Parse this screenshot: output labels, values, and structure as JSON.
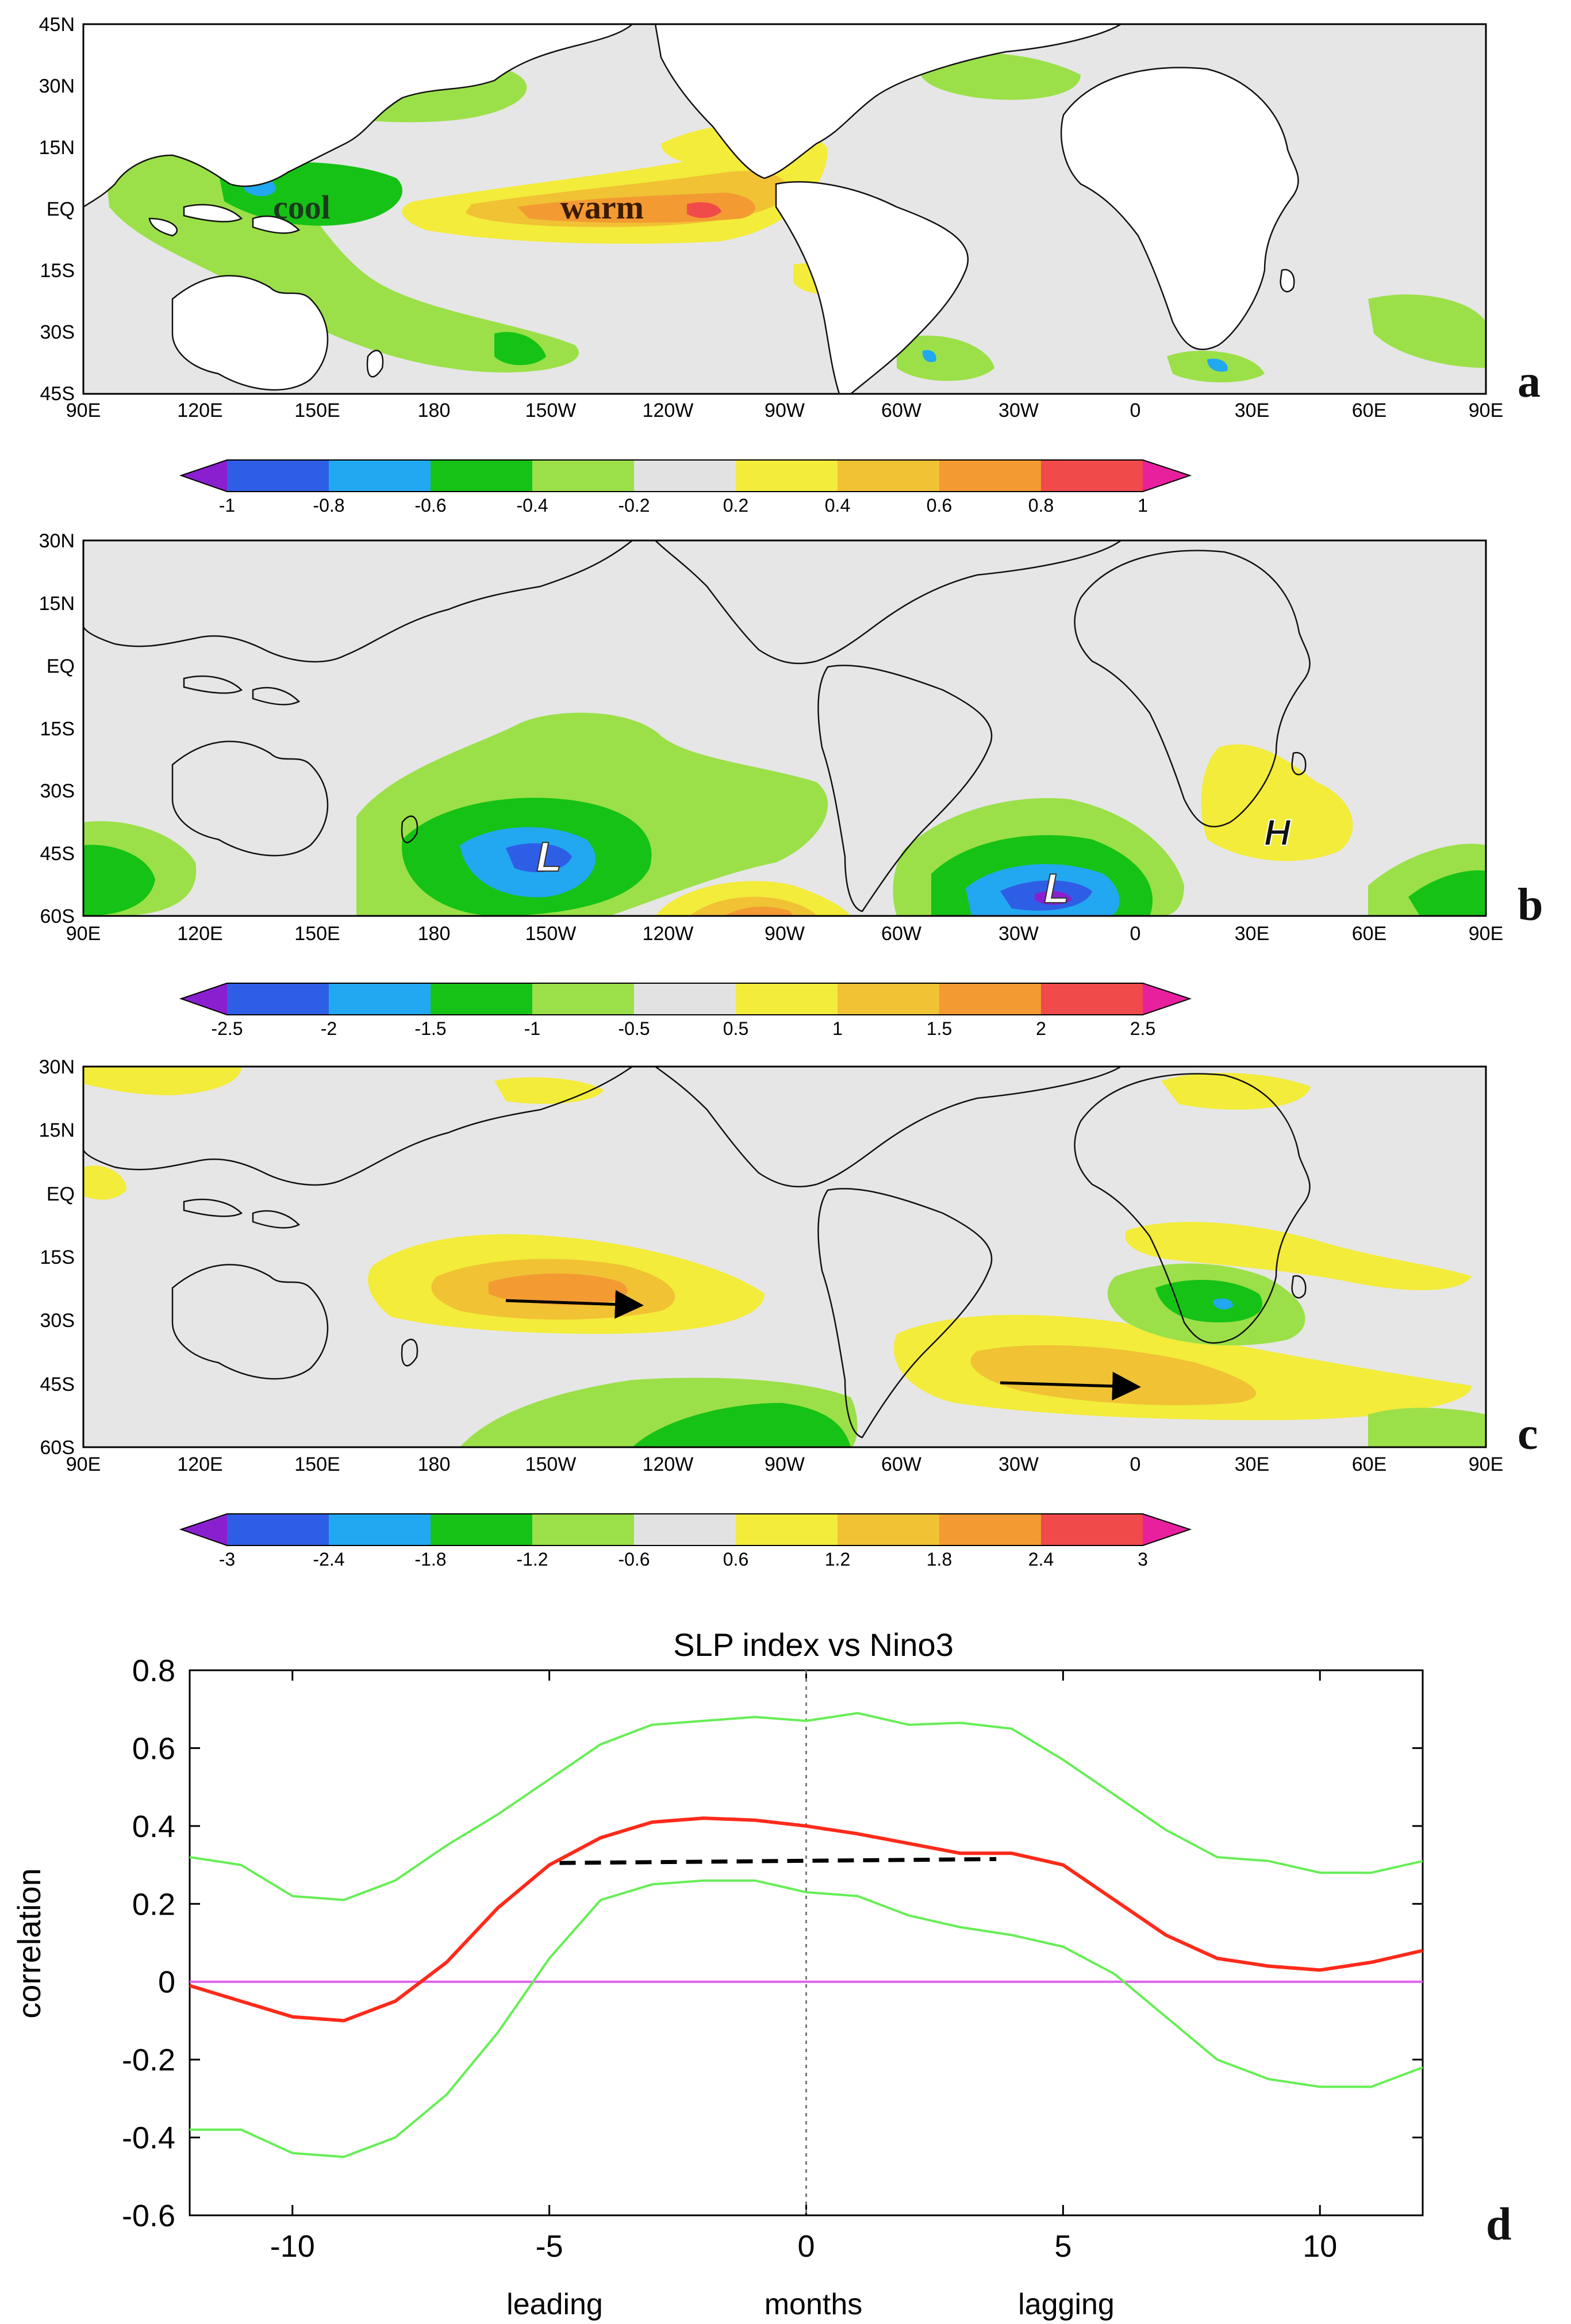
{
  "colors": {
    "ocean": "#e6e6e6",
    "land": "#ffffff",
    "coast": "#111111",
    "c_neg5": "#8a1fd0",
    "c_neg4": "#2f5ee6",
    "c_neg3": "#22a8f0",
    "c_neg2": "#16c216",
    "c_neg1": "#9be048",
    "c_zero": "#e2e2e2",
    "c_pos1": "#f3ec3a",
    "c_pos2": "#f0c234",
    "c_pos3": "#f39a33",
    "c_pos4": "#f14a4a",
    "c_pos5": "#e8209e",
    "red_line": "#ff2a1a",
    "green_line": "#66ee55",
    "magenta_line": "#e060f0",
    "dashed": "#000000"
  },
  "panel_a": {
    "letter": "a",
    "lat_labels": [
      "45N",
      "30N",
      "15N",
      "EQ",
      "15S",
      "30S",
      "45S"
    ],
    "lon_labels": [
      "90E",
      "120E",
      "150E",
      "180",
      "150W",
      "120W",
      "90W",
      "60W",
      "30W",
      "0",
      "30E",
      "60E",
      "90E"
    ],
    "text_cool": "cool",
    "text_warm": "warm",
    "colorbar_labels": [
      "-1",
      "-0.8",
      "-0.6",
      "-0.4",
      "-0.2",
      "0.2",
      "0.4",
      "0.6",
      "0.8",
      "1"
    ]
  },
  "panel_b": {
    "letter": "b",
    "lat_labels": [
      "30N",
      "15N",
      "EQ",
      "15S",
      "30S",
      "45S",
      "60S"
    ],
    "lon_labels": [
      "90E",
      "120E",
      "150E",
      "180",
      "150W",
      "120W",
      "90W",
      "60W",
      "30W",
      "0",
      "30E",
      "60E",
      "90E"
    ],
    "low1": "L",
    "low2": "L",
    "high": "H",
    "colorbar_labels": [
      "-2.5",
      "-2",
      "-1.5",
      "-1",
      "-0.5",
      "0.5",
      "1",
      "1.5",
      "2",
      "2.5"
    ]
  },
  "panel_c": {
    "letter": "c",
    "lat_labels": [
      "30N",
      "15N",
      "EQ",
      "15S",
      "30S",
      "45S",
      "60S"
    ],
    "lon_labels": [
      "90E",
      "120E",
      "150E",
      "180",
      "150W",
      "120W",
      "90W",
      "60W",
      "30W",
      "0",
      "30E",
      "60E",
      "90E"
    ],
    "colorbar_labels": [
      "-3",
      "-2.4",
      "-1.8",
      "-1.2",
      "-0.6",
      "0.6",
      "1.2",
      "1.8",
      "2.4",
      "3"
    ]
  },
  "panel_d": {
    "letter": "d",
    "leading": "leading",
    "months": "months",
    "lagging": "lagging"
  },
  "chart_data": {
    "type": "line",
    "title": "SLP index vs Nino3",
    "xlabel": "months",
    "ylabel": "correlation",
    "xlim": [
      -12,
      12
    ],
    "ylim": [
      -0.6,
      0.8
    ],
    "x_ticks": [
      -10,
      -5,
      0,
      5,
      10
    ],
    "y_ticks": [
      -0.6,
      -0.4,
      -0.2,
      0,
      0.2,
      0.4,
      0.6,
      0.8
    ],
    "x_tick_labels": [
      "-10",
      "-5",
      "0",
      "5",
      "10"
    ],
    "y_tick_labels": [
      "-0.6",
      "-0.4",
      "-0.2",
      "0",
      "0.2",
      "0.4",
      "0.6",
      "0.8"
    ],
    "x": [
      -12,
      -11,
      -10,
      -9,
      -8,
      -7,
      -6,
      -5,
      -4,
      -3,
      -2,
      -1,
      0,
      1,
      2,
      3,
      4,
      5,
      6,
      7,
      8,
      9,
      10,
      11,
      12
    ],
    "series": [
      {
        "name": "correlation",
        "color": "red",
        "values": [
          -0.01,
          -0.05,
          -0.09,
          -0.1,
          -0.05,
          0.05,
          0.19,
          0.3,
          0.37,
          0.41,
          0.42,
          0.415,
          0.4,
          0.38,
          0.355,
          0.33,
          0.33,
          0.3,
          0.21,
          0.12,
          0.06,
          0.04,
          0.03,
          0.05,
          0.08
        ]
      },
      {
        "name": "upper bound",
        "color": "green",
        "values": [
          0.32,
          0.3,
          0.22,
          0.21,
          0.26,
          0.35,
          0.43,
          0.52,
          0.61,
          0.66,
          0.67,
          0.68,
          0.67,
          0.69,
          0.66,
          0.665,
          0.65,
          0.57,
          0.48,
          0.39,
          0.32,
          0.31,
          0.28,
          0.28,
          0.31
        ]
      },
      {
        "name": "lower bound",
        "color": "green",
        "values": [
          -0.38,
          -0.38,
          -0.44,
          -0.45,
          -0.4,
          -0.29,
          -0.13,
          0.06,
          0.21,
          0.25,
          0.26,
          0.26,
          0.23,
          0.22,
          0.17,
          0.14,
          0.12,
          0.09,
          0.02,
          -0.09,
          -0.2,
          -0.25,
          -0.27,
          -0.27,
          -0.22
        ]
      }
    ],
    "reference_lines": [
      {
        "name": "zero line",
        "axis": "y",
        "value": 0,
        "color": "magenta"
      },
      {
        "name": "zero lag",
        "axis": "x",
        "value": 0,
        "style": "dotted"
      }
    ],
    "dashed_segment": {
      "x": [
        -4.8,
        3.7
      ],
      "y": [
        0.305,
        0.315
      ]
    }
  }
}
